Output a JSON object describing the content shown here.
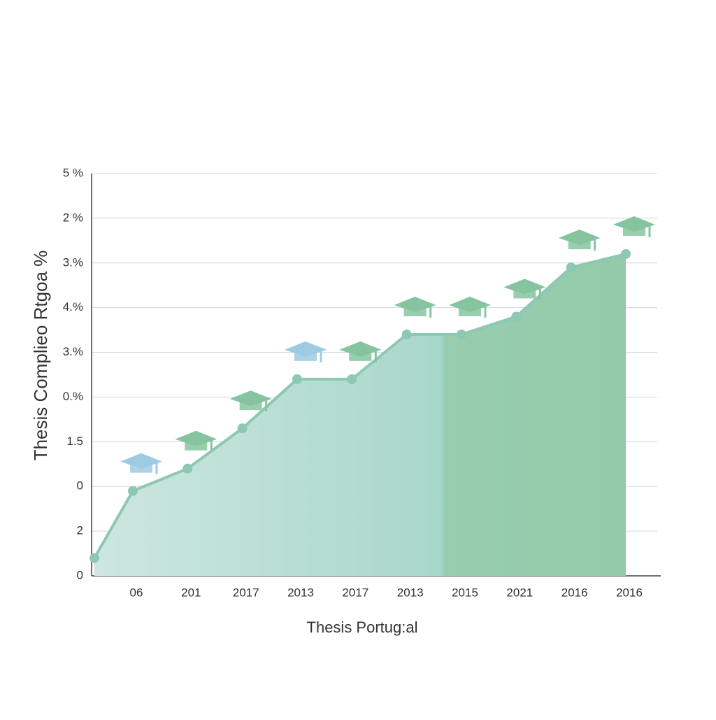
{
  "chart_data": {
    "type": "area",
    "y_label": "Thesis Complieo Rtgoa  %",
    "x_label": "Thesis Portug:al",
    "categories": [
      null,
      "06",
      "201",
      "2017",
      "2013",
      "2017",
      "2013",
      "2015",
      "2021",
      "2016",
      "2016"
    ],
    "values": [
      0.4,
      1.9,
      2.4,
      3.3,
      4.4,
      4.4,
      5.4,
      5.4,
      5.8,
      6.9,
      7.2
    ],
    "color": "#8cc8b4",
    "ylim": [
      0,
      9
    ],
    "yticks": [
      {
        "value": 0,
        "label": "0"
      },
      {
        "value": 1,
        "label": "2"
      },
      {
        "value": 2,
        "label": "0"
      },
      {
        "value": 3,
        "label": "1.5"
      },
      {
        "value": 4,
        "label": "0.%"
      },
      {
        "value": 5,
        "label": "3.%"
      },
      {
        "value": 6,
        "label": "4.%"
      },
      {
        "value": 7,
        "label": "3.%"
      },
      {
        "value": 8,
        "label": "2 %"
      },
      {
        "value": 9,
        "label": "5 %"
      }
    ],
    "grid": true
  }
}
